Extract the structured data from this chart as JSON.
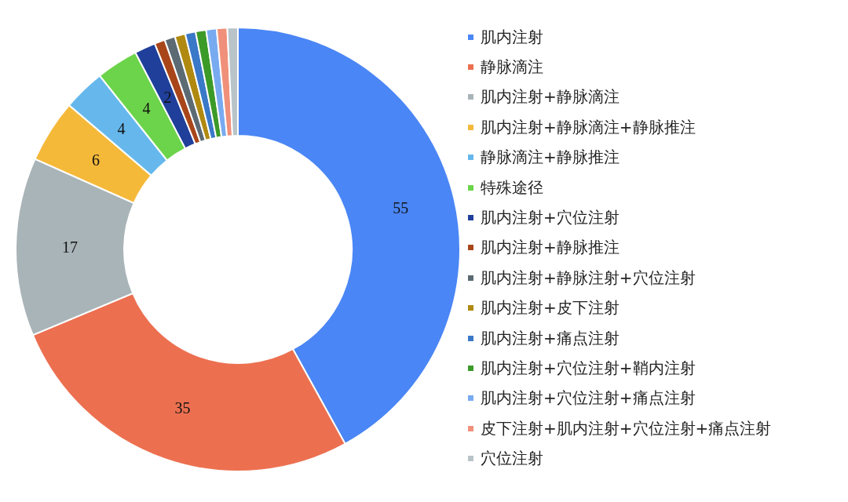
{
  "chart_data": {
    "type": "donut",
    "categories": [
      "肌内注射",
      "静脉滴注",
      "肌内注射+静脉滴注",
      "肌内注射+静脉滴注+静脉推注",
      "静脉滴注+静脉推注",
      "特殊途径",
      "肌内注射+穴位注射",
      "肌内注射+静脉推注",
      "肌内注射+静脉注射+穴位注射",
      "肌内注射+皮下注射",
      "肌内注射+痛点注射",
      "肌内注射+穴位注射+鞘内注射",
      "肌内注射+穴位注射+痛点注射",
      "皮下注射+肌内注射+穴位注射+痛点注射",
      "穴位注射"
    ],
    "values": [
      55,
      35,
      17,
      6,
      4,
      4,
      2,
      1,
      1,
      1,
      1,
      1,
      1,
      1,
      1
    ],
    "value_labels": [
      "55",
      "35",
      "17",
      "6",
      "4",
      "4",
      "2",
      null,
      null,
      null,
      null,
      null,
      null,
      null,
      null
    ],
    "colors": [
      "#4a86f5",
      "#ec7050",
      "#a9b4b8",
      "#f5b93a",
      "#66b8ec",
      "#6cd44a",
      "#1f3f9a",
      "#a8461a",
      "#5c6a73",
      "#b08a10",
      "#3a78c8",
      "#3c9a28",
      "#78aaf0",
      "#f0907a",
      "#b8c4c8"
    ],
    "legend": "right"
  }
}
